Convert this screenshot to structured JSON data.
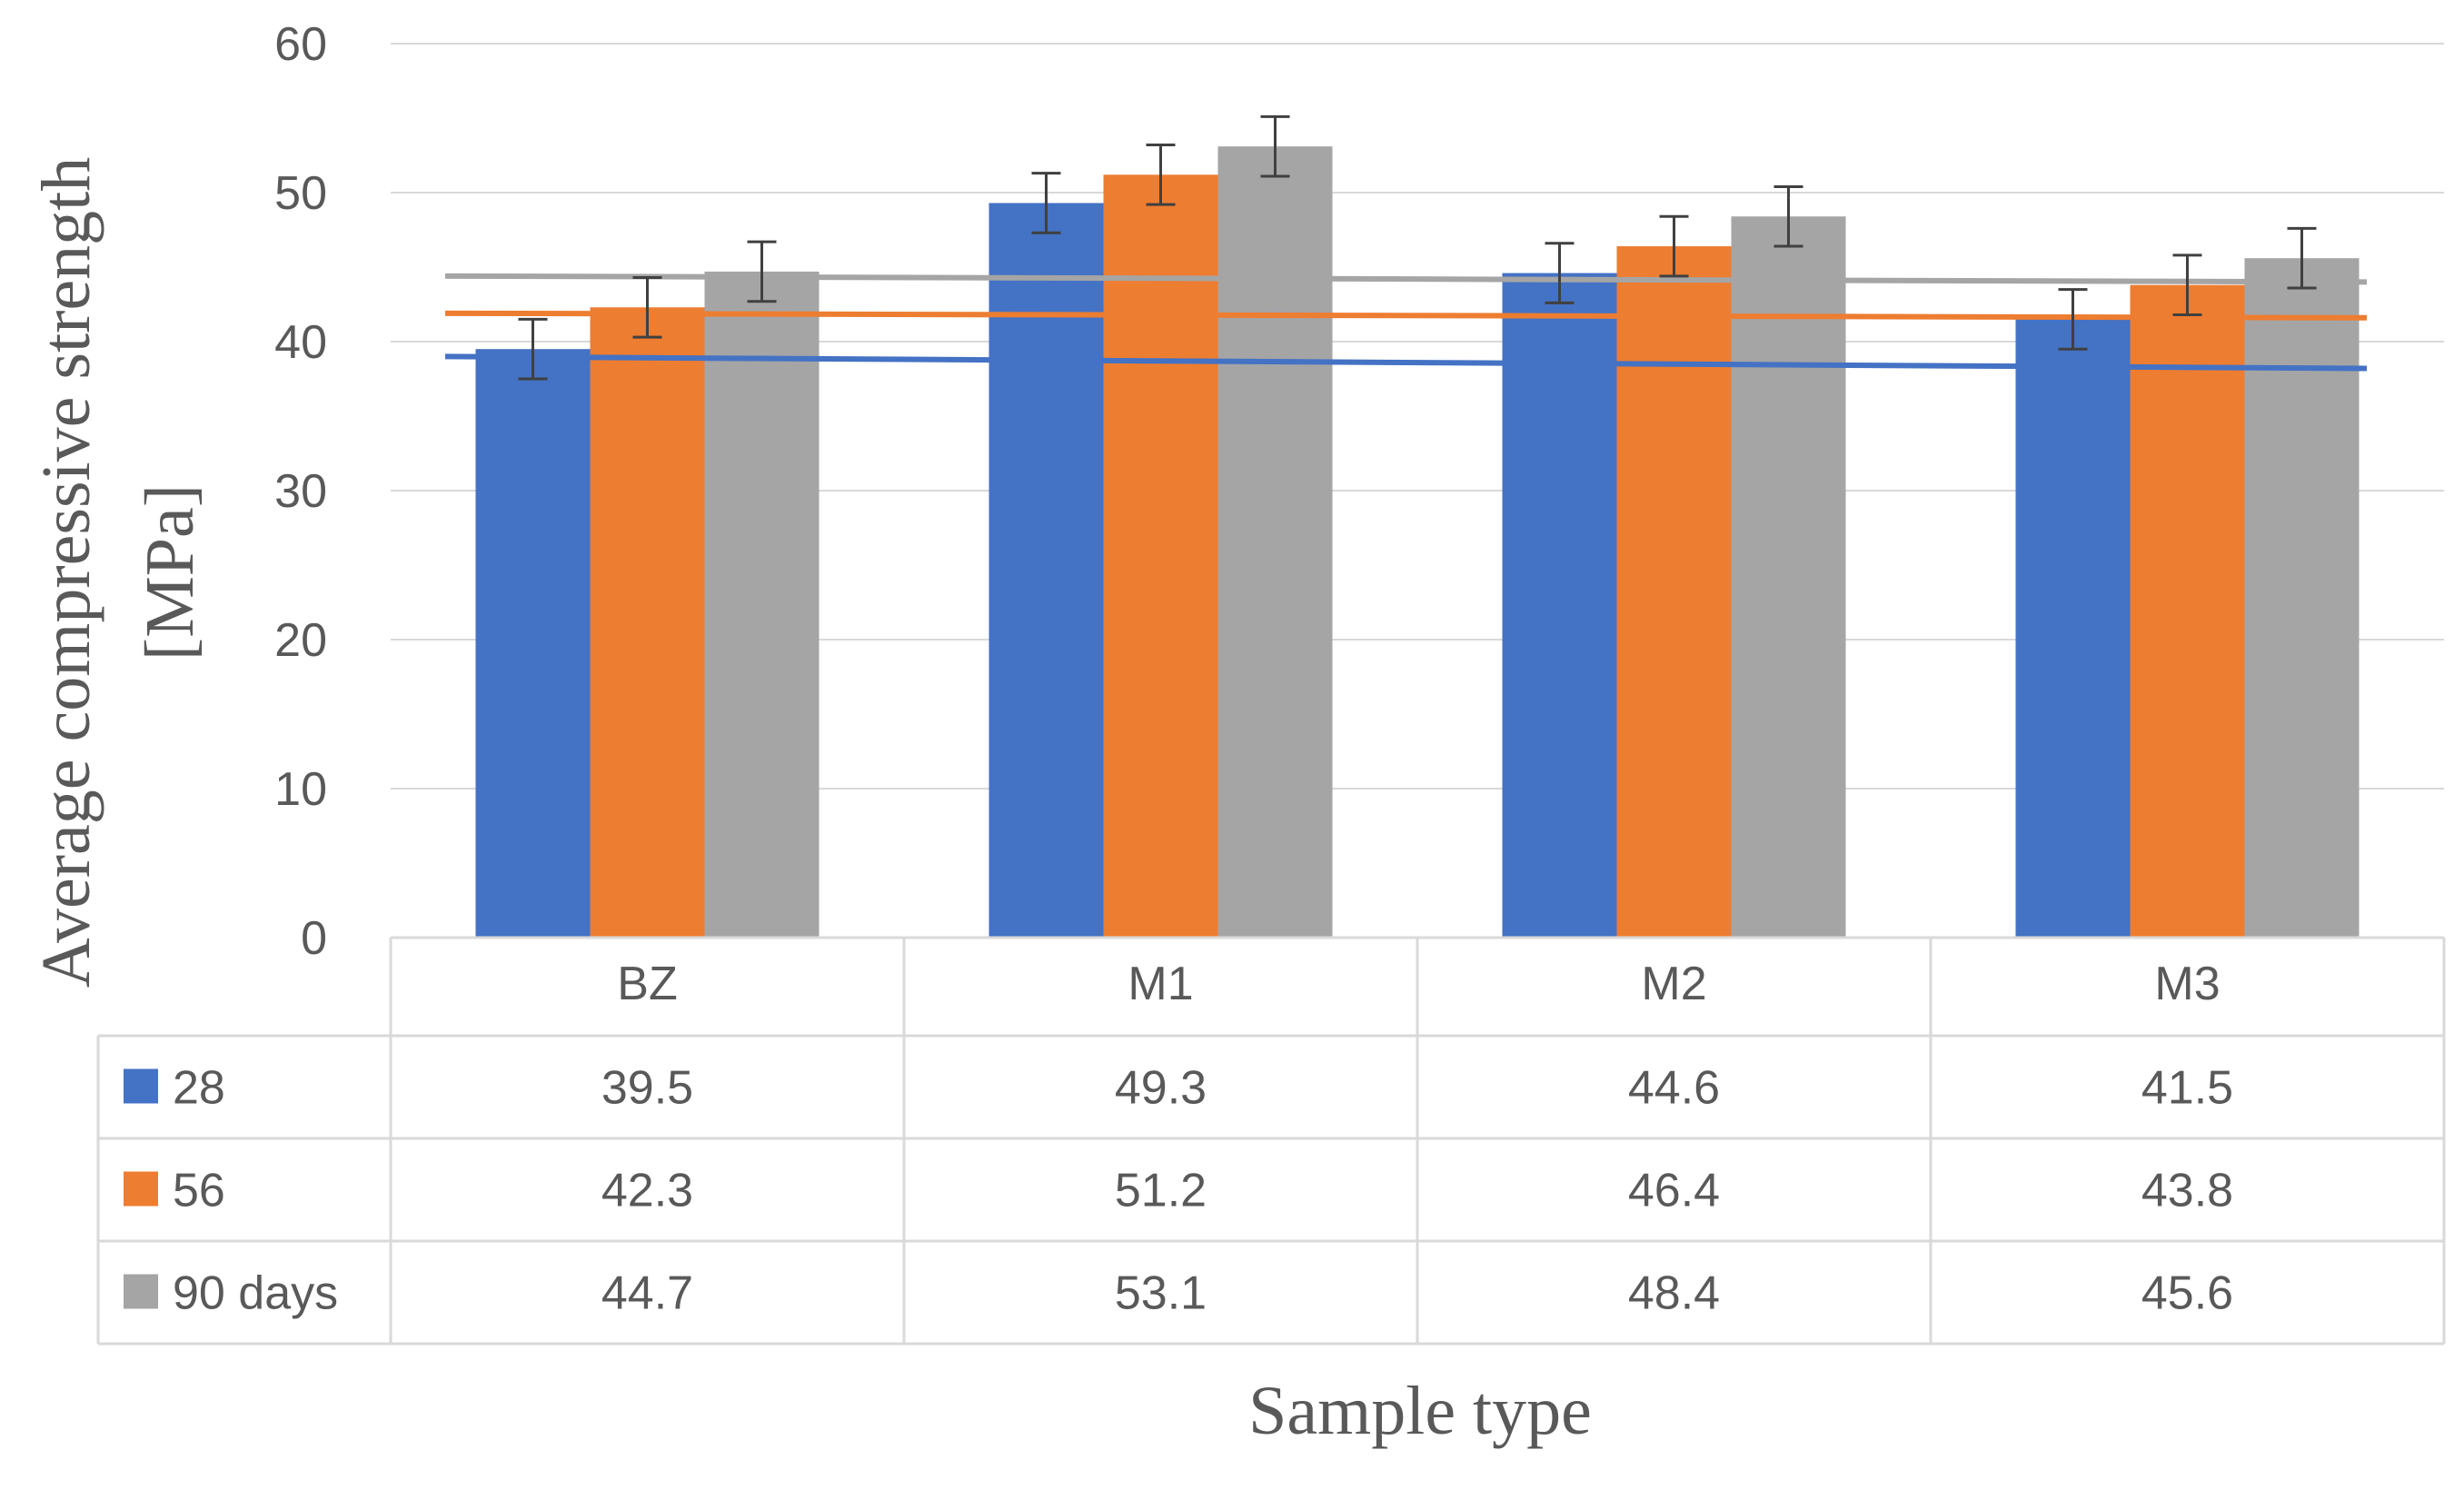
{
  "chart_data": {
    "type": "bar",
    "xlabel": "Sample type",
    "ylabel_line1": "Average compressive strength",
    "ylabel_line2": "[MPa]",
    "ylim": [
      0,
      60
    ],
    "yticks": [
      0,
      10,
      20,
      30,
      40,
      50,
      60
    ],
    "ytick_labels": [
      "0",
      "10",
      "20",
      "30",
      "40",
      "50",
      "60"
    ],
    "grid": true,
    "categories": [
      "BZ",
      "M1",
      "M2",
      "M3"
    ],
    "error_bar": 2,
    "series": [
      {
        "name": "28",
        "color": "#4472C4",
        "values": [
          39.5,
          49.3,
          44.6,
          41.5
        ],
        "value_labels": [
          "39.5",
          "49.3",
          "44.6",
          "41.5"
        ],
        "trend": [
          39.0,
          38.2
        ]
      },
      {
        "name": "56",
        "color": "#ED7D31",
        "values": [
          42.3,
          51.2,
          46.4,
          43.8
        ],
        "value_labels": [
          "42.3",
          "51.2",
          "46.4",
          "43.8"
        ],
        "trend": [
          41.9,
          41.6
        ]
      },
      {
        "name": "90 days",
        "color": "#A5A5A5",
        "values": [
          44.7,
          53.1,
          48.4,
          45.6
        ],
        "value_labels": [
          "44.7",
          "53.1",
          "48.4",
          "45.6"
        ],
        "trend": [
          44.4,
          44.0
        ]
      }
    ]
  }
}
